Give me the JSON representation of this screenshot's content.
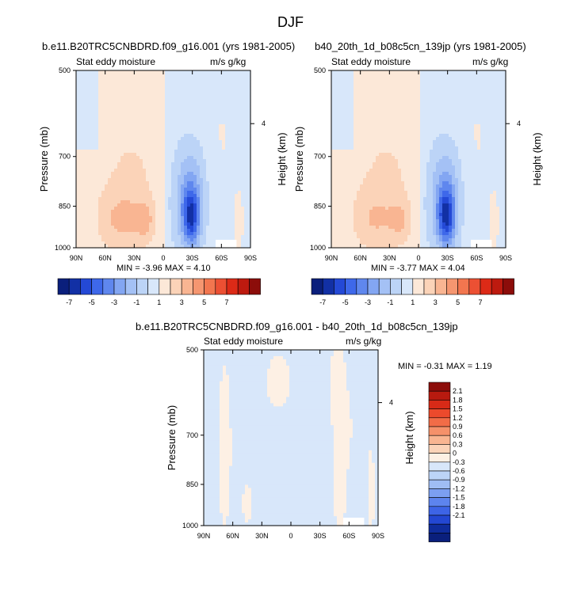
{
  "figure_title": "DJF",
  "chart_data": [
    {
      "type": "heatmap",
      "title": "b.e11.B20TRC5CNBDRD.f09_g16.001 (yrs 1981-2005)",
      "left_string": "Stat eddy moisture",
      "right_string": "m/s g/kg",
      "xlabel": "",
      "ylabel": "Pressure (mb)",
      "y2label": "Height (km)",
      "xticks": [
        "90N",
        "60N",
        "30N",
        "0",
        "30S",
        "60S",
        "90S"
      ],
      "yticks": [
        "500",
        "700",
        "850",
        "1000"
      ],
      "y2ticks": [
        "4"
      ],
      "min_max_text": "MIN = -3.96  MAX =  4.10",
      "min": -3.96,
      "max": 4.1,
      "colorbar_labels": [
        "-7",
        "-5",
        "-3",
        "-1",
        "1",
        "3",
        "5",
        "7"
      ],
      "colorbar_levels": [
        -8,
        -7,
        -6,
        -5,
        -4,
        -3,
        -2,
        -1,
        0,
        1,
        2,
        3,
        4,
        5,
        6,
        7,
        8
      ],
      "colorbar_orientation": "horizontal"
    },
    {
      "type": "heatmap",
      "title": "b40_20th_1d_b08c5cn_139jp (yrs 1981-2005)",
      "left_string": "Stat eddy moisture",
      "right_string": "m/s g/kg",
      "xlabel": "",
      "ylabel": "Pressure (mb)",
      "y2label": "Height (km)",
      "xticks": [
        "90N",
        "60N",
        "30N",
        "0",
        "30S",
        "60S",
        "90S"
      ],
      "yticks": [
        "500",
        "700",
        "850",
        "1000"
      ],
      "y2ticks": [
        "4"
      ],
      "min_max_text": "MIN = -3.77  MAX =  4.04",
      "min": -3.77,
      "max": 4.04,
      "colorbar_labels": [
        "-7",
        "-5",
        "-3",
        "-1",
        "1",
        "3",
        "5",
        "7"
      ],
      "colorbar_levels": [
        -8,
        -7,
        -6,
        -5,
        -4,
        -3,
        -2,
        -1,
        0,
        1,
        2,
        3,
        4,
        5,
        6,
        7,
        8
      ],
      "colorbar_orientation": "horizontal"
    },
    {
      "type": "heatmap",
      "title": "b.e11.B20TRC5CNBDRD.f09_g16.001 - b40_20th_1d_b08c5cn_139jp",
      "left_string": "Stat eddy moisture",
      "right_string": "m/s g/kg",
      "xlabel": "",
      "ylabel": "Pressure (mb)",
      "y2label": "Height (km)",
      "xticks": [
        "90N",
        "60N",
        "30N",
        "0",
        "30S",
        "60S",
        "90S"
      ],
      "yticks": [
        "500",
        "700",
        "850",
        "1000"
      ],
      "y2ticks": [
        "4"
      ],
      "min_max_text": "MIN = -0.31  MAX =  1.19",
      "min": -0.31,
      "max": 1.19,
      "colorbar_labels": [
        "2.1",
        "1.8",
        "1.5",
        "1.2",
        "0.9",
        "0.6",
        "0.3",
        "0",
        "-0.3",
        "-0.6",
        "-0.9",
        "-1.2",
        "-1.5",
        "-1.8",
        "-2.1"
      ],
      "colorbar_orientation": "vertical"
    }
  ],
  "colors": {
    "warm": [
      "#fce8d8",
      "#fbd3b8",
      "#f9b592",
      "#f59670",
      "#f2764f",
      "#ec5033",
      "#dc2a17",
      "#bd1a0f",
      "#8c0d0a"
    ],
    "cool": [
      "#d8e7fa",
      "#bcd4f7",
      "#a4c1f5",
      "#83a6f2",
      "#5f87ee",
      "#3e68ea",
      "#2449d6",
      "#1230a5",
      "#0a1f7c"
    ],
    "diff_warm": [
      "#8c0d0a",
      "#b81a0f",
      "#d82a17",
      "#ec4a2c",
      "#f26c47",
      "#f5916a",
      "#f9b591",
      "#fbd3b8"
    ],
    "diff_zero": "#fdf0e4",
    "diff_cool": [
      "#d8e7fa",
      "#bcd4f7",
      "#9fbdf4",
      "#7c9ff1",
      "#5d84ee",
      "#3d64e6",
      "#2347d2",
      "#0f2c9c",
      "#0a1f7c"
    ]
  }
}
